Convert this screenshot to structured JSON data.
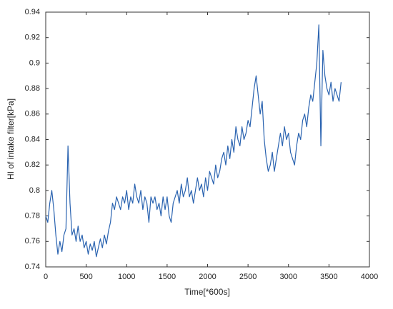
{
  "chart_data": {
    "type": "line",
    "x_label": "Time[*600s]",
    "y_label": "HI of intake filter[kPa]",
    "x": [
      0,
      25,
      50,
      75,
      100,
      125,
      150,
      175,
      200,
      225,
      250,
      275,
      300,
      325,
      350,
      375,
      400,
      425,
      450,
      475,
      500,
      525,
      550,
      575,
      600,
      625,
      650,
      675,
      700,
      725,
      750,
      775,
      800,
      825,
      850,
      875,
      900,
      925,
      950,
      975,
      1000,
      1025,
      1050,
      1075,
      1100,
      1125,
      1150,
      1175,
      1200,
      1225,
      1250,
      1275,
      1300,
      1325,
      1350,
      1375,
      1400,
      1425,
      1450,
      1475,
      1500,
      1525,
      1550,
      1575,
      1600,
      1625,
      1650,
      1675,
      1700,
      1725,
      1750,
      1775,
      1800,
      1825,
      1850,
      1875,
      1900,
      1925,
      1950,
      1975,
      2000,
      2025,
      2050,
      2075,
      2100,
      2125,
      2150,
      2175,
      2200,
      2225,
      2250,
      2275,
      2300,
      2325,
      2350,
      2375,
      2400,
      2425,
      2450,
      2475,
      2500,
      2525,
      2550,
      2575,
      2600,
      2625,
      2650,
      2675,
      2700,
      2725,
      2750,
      2775,
      2800,
      2825,
      2850,
      2875,
      2900,
      2925,
      2950,
      2975,
      3000,
      3025,
      3050,
      3075,
      3100,
      3125,
      3150,
      3175,
      3200,
      3225,
      3250,
      3275,
      3300,
      3325,
      3350,
      3375,
      3400,
      3425,
      3450,
      3475,
      3500,
      3525,
      3550,
      3575,
      3600,
      3625,
      3650
    ],
    "series": [
      {
        "color": "#2a63b0",
        "values": [
          0.78,
          0.775,
          0.79,
          0.8,
          0.785,
          0.765,
          0.75,
          0.76,
          0.752,
          0.765,
          0.77,
          0.835,
          0.79,
          0.765,
          0.77,
          0.76,
          0.772,
          0.76,
          0.765,
          0.755,
          0.76,
          0.75,
          0.758,
          0.753,
          0.76,
          0.748,
          0.755,
          0.762,
          0.755,
          0.765,
          0.758,
          0.768,
          0.775,
          0.79,
          0.785,
          0.795,
          0.79,
          0.785,
          0.795,
          0.79,
          0.8,
          0.785,
          0.795,
          0.79,
          0.805,
          0.795,
          0.79,
          0.8,
          0.785,
          0.795,
          0.79,
          0.775,
          0.795,
          0.79,
          0.795,
          0.785,
          0.79,
          0.78,
          0.795,
          0.785,
          0.795,
          0.78,
          0.775,
          0.79,
          0.795,
          0.8,
          0.79,
          0.805,
          0.795,
          0.8,
          0.81,
          0.795,
          0.8,
          0.79,
          0.8,
          0.81,
          0.8,
          0.805,
          0.795,
          0.81,
          0.8,
          0.815,
          0.81,
          0.805,
          0.82,
          0.81,
          0.815,
          0.825,
          0.83,
          0.82,
          0.835,
          0.825,
          0.84,
          0.83,
          0.85,
          0.84,
          0.835,
          0.85,
          0.84,
          0.845,
          0.855,
          0.85,
          0.865,
          0.88,
          0.89,
          0.875,
          0.86,
          0.87,
          0.84,
          0.825,
          0.815,
          0.82,
          0.83,
          0.815,
          0.825,
          0.835,
          0.845,
          0.835,
          0.85,
          0.84,
          0.845,
          0.83,
          0.825,
          0.82,
          0.835,
          0.845,
          0.84,
          0.855,
          0.86,
          0.85,
          0.865,
          0.875,
          0.87,
          0.885,
          0.9,
          0.93,
          0.835,
          0.91,
          0.89,
          0.88,
          0.875,
          0.885,
          0.87,
          0.88,
          0.875,
          0.87,
          0.885
        ]
      }
    ],
    "xlim": [
      0,
      4000
    ],
    "xticks": [
      0,
      500,
      1000,
      1500,
      2000,
      2500,
      3000,
      3500,
      4000
    ],
    "ylim": [
      0.74,
      0.94
    ],
    "yticks": [
      0.74,
      0.76,
      0.78,
      0.8,
      0.82,
      0.84,
      0.86,
      0.88,
      0.9,
      0.92,
      0.94
    ]
  }
}
